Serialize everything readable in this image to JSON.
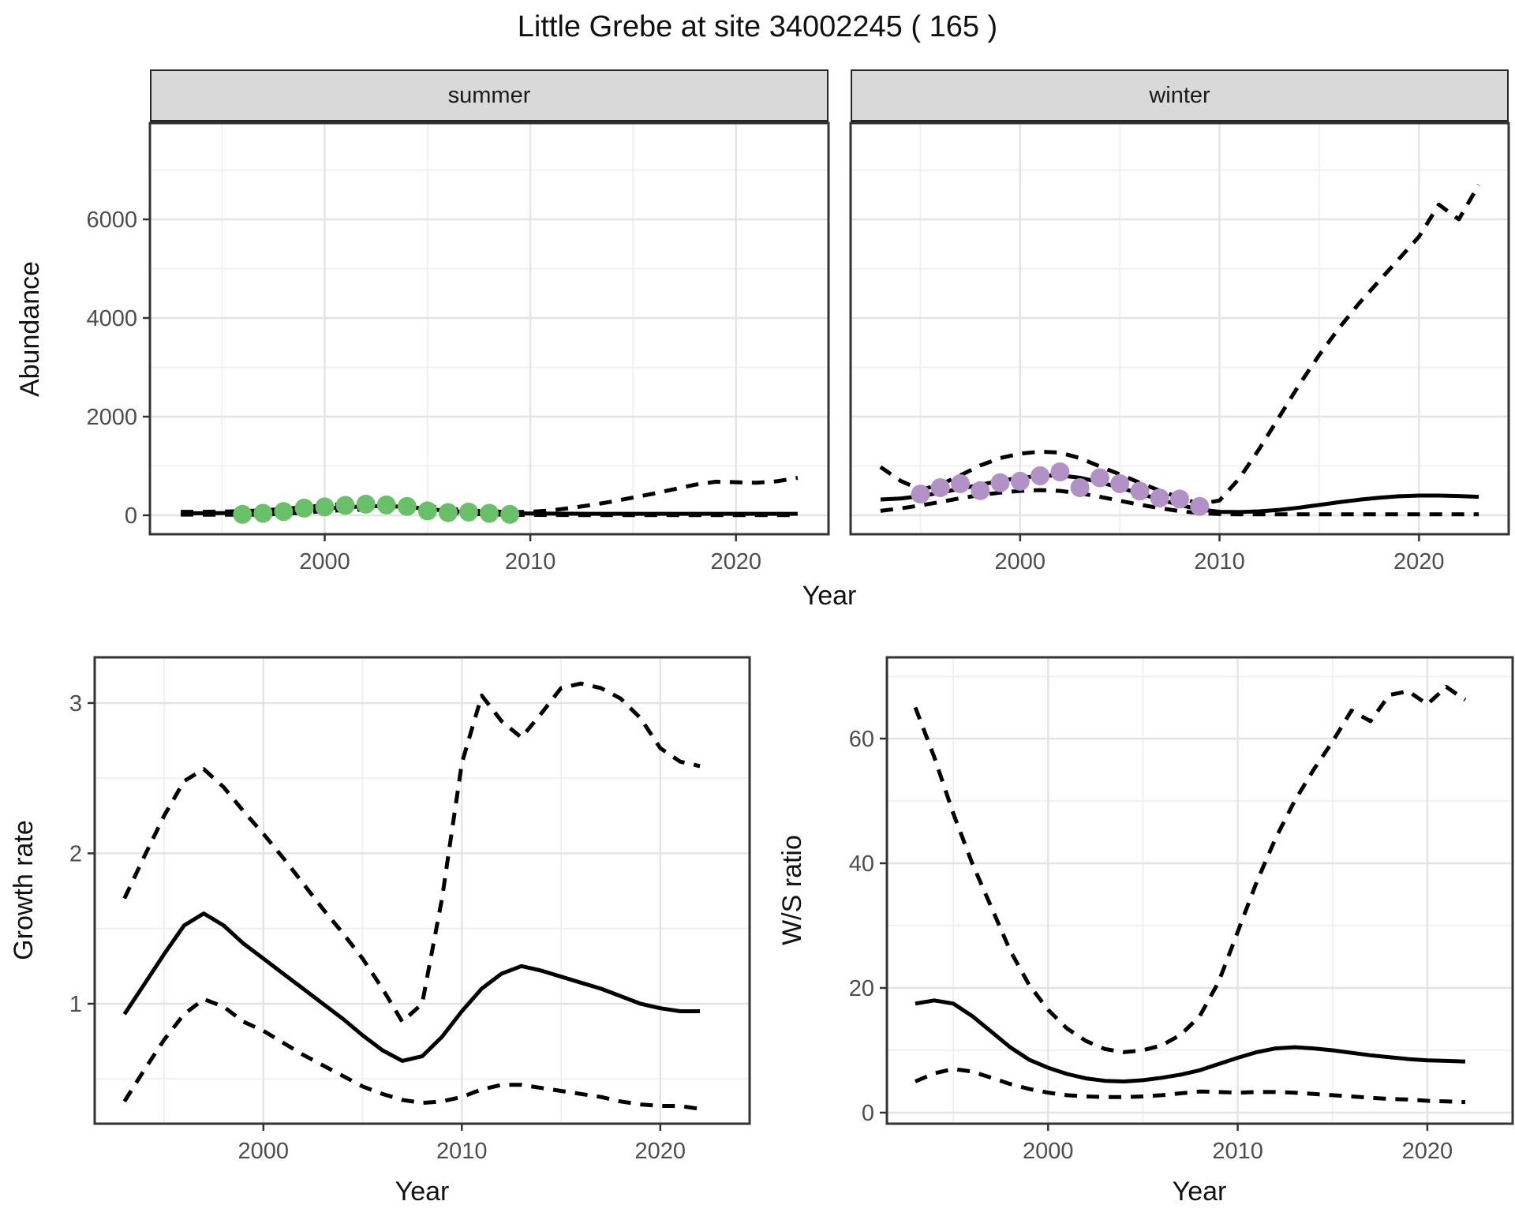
{
  "title": "Little Grebe at site 34002245 ( 165 )",
  "colors": {
    "summer_point": "#6abf69",
    "winter_point": "#b291c6",
    "line": "#000000",
    "strip_fill": "#d9d9d9",
    "grid_major": "#e4e4e4",
    "grid_minor": "#efefef",
    "axis_text": "#4d4d4d",
    "panel_border": "#333333"
  },
  "chart_data": [
    {
      "id": "abundance-summer",
      "type": "line",
      "facet": "summer",
      "xlabel": "Year",
      "ylabel": "Abundance",
      "xlim": [
        1991.5,
        2024.5
      ],
      "ylim": [
        -384,
        7952
      ],
      "xticks": [
        2000,
        2010,
        2020
      ],
      "xminor": [
        1995,
        2005,
        2015
      ],
      "yticks": [
        0,
        2000,
        4000,
        6000
      ],
      "yminor": [
        1000,
        3000,
        5000,
        7000
      ],
      "legend": "none",
      "grid": "on",
      "series": [
        {
          "name": "fit",
          "style": "solid",
          "x": [
            1993,
            1994,
            1995,
            1996,
            1997,
            1998,
            1999,
            2000,
            2001,
            2002,
            2003,
            2004,
            2005,
            2006,
            2007,
            2008,
            2009,
            2010,
            2011,
            2012,
            2013,
            2014,
            2015,
            2016,
            2017,
            2018,
            2019,
            2020,
            2021,
            2022,
            2023
          ],
          "y": [
            40,
            42,
            45,
            50,
            60,
            80,
            110,
            140,
            165,
            180,
            185,
            170,
            130,
            90,
            65,
            50,
            40,
            35,
            33,
            32,
            31,
            30,
            30,
            30,
            30,
            30,
            30,
            30,
            30,
            30,
            30
          ]
        },
        {
          "name": "ci-high",
          "style": "dashed",
          "x": [
            1993,
            1994,
            1995,
            1996,
            1997,
            1998,
            1999,
            2000,
            2001,
            2002,
            2003,
            2004,
            2005,
            2006,
            2007,
            2008,
            2009,
            2010,
            2011,
            2012,
            2013,
            2014,
            2015,
            2016,
            2017,
            2018,
            2019,
            2020,
            2021,
            2022,
            2023
          ],
          "y": [
            70,
            70,
            75,
            85,
            100,
            130,
            165,
            200,
            230,
            250,
            255,
            235,
            185,
            135,
            100,
            80,
            65,
            70,
            100,
            150,
            210,
            280,
            360,
            440,
            530,
            620,
            680,
            670,
            660,
            690,
            760
          ]
        },
        {
          "name": "ci-low",
          "style": "dashed",
          "x": [
            1993,
            1994,
            1995,
            1996,
            1997,
            1998,
            1999,
            2000,
            2001,
            2002,
            2003,
            2004,
            2005,
            2006,
            2007,
            2008,
            2009,
            2010,
            2011,
            2012,
            2013,
            2014,
            2015,
            2016,
            2017,
            2018,
            2019,
            2020,
            2021,
            2022,
            2023
          ],
          "y": [
            15,
            13,
            12,
            12,
            15,
            30,
            55,
            85,
            105,
            115,
            115,
            100,
            70,
            45,
            30,
            20,
            12,
            8,
            6,
            5,
            5,
            5,
            5,
            5,
            5,
            5,
            5,
            5,
            5,
            5,
            5
          ]
        }
      ],
      "points": {
        "name": "observed-counts",
        "color": "#6abf69",
        "x": [
          1996,
          1997,
          1998,
          1999,
          2000,
          2001,
          2002,
          2003,
          2004,
          2005,
          2006,
          2007,
          2008,
          2009
        ],
        "y": [
          20,
          40,
          75,
          145,
          170,
          200,
          225,
          210,
          180,
          90,
          55,
          65,
          40,
          20
        ]
      }
    },
    {
      "id": "abundance-winter",
      "type": "line",
      "facet": "winter",
      "xlabel": "Year",
      "ylabel": "",
      "xlim": [
        1991.5,
        2024.5
      ],
      "ylim": [
        -384,
        7952
      ],
      "xticks": [
        2000,
        2010,
        2020
      ],
      "xminor": [
        1995,
        2005,
        2015
      ],
      "yticks": [
        0,
        2000,
        4000,
        6000
      ],
      "yminor": [
        1000,
        3000,
        5000,
        7000
      ],
      "legend": "none",
      "grid": "on",
      "series": [
        {
          "name": "fit",
          "style": "solid",
          "x": [
            1993,
            1994,
            1995,
            1996,
            1997,
            1998,
            1999,
            2000,
            2001,
            2002,
            2003,
            2004,
            2005,
            2006,
            2007,
            2008,
            2009,
            2010,
            2011,
            2012,
            2013,
            2014,
            2015,
            2016,
            2017,
            2018,
            2019,
            2020,
            2021,
            2022,
            2023
          ],
          "y": [
            320,
            340,
            390,
            460,
            540,
            620,
            700,
            760,
            800,
            810,
            760,
            670,
            560,
            440,
            320,
            210,
            120,
            70,
            65,
            80,
            110,
            155,
            210,
            265,
            315,
            355,
            385,
            400,
            400,
            390,
            375
          ]
        },
        {
          "name": "ci-high",
          "style": "dashed",
          "x": [
            1993,
            1994,
            1995,
            1996,
            1997,
            1998,
            1999,
            2000,
            2001,
            2002,
            2003,
            2004,
            2005,
            2006,
            2007,
            2008,
            2009,
            2010,
            2011,
            2012,
            2013,
            2014,
            2015,
            2016,
            2017,
            2018,
            2019,
            2020,
            2021,
            2022,
            2023
          ],
          "y": [
            980,
            700,
            520,
            620,
            810,
            1010,
            1160,
            1250,
            1290,
            1270,
            1160,
            990,
            830,
            660,
            500,
            360,
            230,
            300,
            750,
            1350,
            2000,
            2650,
            3250,
            3800,
            4300,
            4750,
            5200,
            5650,
            6300,
            6000,
            6700
          ]
        },
        {
          "name": "ci-low",
          "style": "dashed",
          "x": [
            1993,
            1994,
            1995,
            1996,
            1997,
            1998,
            1999,
            2000,
            2001,
            2002,
            2003,
            2004,
            2005,
            2006,
            2007,
            2008,
            2009,
            2010,
            2011,
            2012,
            2013,
            2014,
            2015,
            2016,
            2017,
            2018,
            2019,
            2020,
            2021,
            2022,
            2023
          ],
          "y": [
            90,
            140,
            200,
            270,
            345,
            410,
            460,
            495,
            510,
            495,
            445,
            375,
            295,
            215,
            145,
            85,
            45,
            25,
            20,
            20,
            20,
            20,
            20,
            20,
            20,
            20,
            20,
            20,
            20,
            20,
            20
          ]
        }
      ],
      "points": {
        "name": "observed-counts",
        "color": "#b291c6",
        "x": [
          1995,
          1996,
          1997,
          1998,
          1999,
          2000,
          2001,
          2002,
          2003,
          2004,
          2005,
          2006,
          2007,
          2008,
          2009
        ],
        "y": [
          430,
          560,
          640,
          500,
          660,
          690,
          800,
          880,
          560,
          760,
          640,
          490,
          350,
          330,
          180
        ]
      }
    },
    {
      "id": "growth-rate",
      "type": "line",
      "facet": "",
      "xlabel": "Year",
      "ylabel": "Growth rate",
      "xlim": [
        1991.5,
        2024.5
      ],
      "ylim": [
        0.202,
        3.304
      ],
      "xticks": [
        2000,
        2010,
        2020
      ],
      "xminor": [
        1995,
        2005,
        2015
      ],
      "yticks": [
        1,
        2,
        3
      ],
      "yminor": [
        0.5,
        1.5,
        2.5
      ],
      "legend": "none",
      "grid": "on",
      "series": [
        {
          "name": "fit",
          "style": "solid",
          "x": [
            1993,
            1994,
            1995,
            1996,
            1997,
            1998,
            1999,
            2000,
            2001,
            2002,
            2003,
            2004,
            2005,
            2006,
            2007,
            2008,
            2009,
            2010,
            2011,
            2012,
            2013,
            2014,
            2015,
            2016,
            2017,
            2018,
            2019,
            2020,
            2021,
            2022
          ],
          "y": [
            0.93,
            1.13,
            1.33,
            1.52,
            1.6,
            1.52,
            1.4,
            1.3,
            1.2,
            1.1,
            1.0,
            0.9,
            0.79,
            0.69,
            0.62,
            0.65,
            0.78,
            0.95,
            1.1,
            1.2,
            1.25,
            1.22,
            1.18,
            1.14,
            1.1,
            1.05,
            1.0,
            0.97,
            0.95,
            0.95
          ]
        },
        {
          "name": "ci-high",
          "style": "dashed",
          "x": [
            1993,
            1994,
            1995,
            1996,
            1997,
            1998,
            1999,
            2000,
            2001,
            2002,
            2003,
            2004,
            2005,
            2006,
            2007,
            2008,
            2009,
            2010,
            2011,
            2012,
            2013,
            2014,
            2015,
            2016,
            2017,
            2018,
            2019,
            2020,
            2021,
            2022
          ],
          "y": [
            1.7,
            1.98,
            2.25,
            2.48,
            2.56,
            2.44,
            2.28,
            2.13,
            1.97,
            1.8,
            1.63,
            1.47,
            1.3,
            1.1,
            0.88,
            1.0,
            1.7,
            2.6,
            3.05,
            2.88,
            2.77,
            2.93,
            3.1,
            3.13,
            3.1,
            3.03,
            2.9,
            2.7,
            2.61,
            2.58
          ]
        },
        {
          "name": "ci-low",
          "style": "dashed",
          "x": [
            1993,
            1994,
            1995,
            1996,
            1997,
            1998,
            1999,
            2000,
            2001,
            2002,
            2003,
            2004,
            2005,
            2006,
            2007,
            2008,
            2009,
            2010,
            2011,
            2012,
            2013,
            2014,
            2015,
            2016,
            2017,
            2018,
            2019,
            2020,
            2021,
            2022
          ],
          "y": [
            0.35,
            0.56,
            0.76,
            0.93,
            1.03,
            0.98,
            0.88,
            0.82,
            0.74,
            0.66,
            0.59,
            0.52,
            0.45,
            0.4,
            0.36,
            0.34,
            0.35,
            0.38,
            0.43,
            0.46,
            0.46,
            0.44,
            0.42,
            0.4,
            0.38,
            0.35,
            0.33,
            0.32,
            0.32,
            0.3
          ]
        }
      ],
      "points": null
    },
    {
      "id": "ws-ratio",
      "type": "line",
      "facet": "",
      "xlabel": "Year",
      "ylabel": "W/S ratio",
      "xlim": [
        1991.5,
        2024.5
      ],
      "ylim": [
        -1.77,
        73.04
      ],
      "xticks": [
        2000,
        2010,
        2020
      ],
      "xminor": [
        1995,
        2005,
        2015
      ],
      "yticks": [
        0,
        20,
        40,
        60
      ],
      "yminor": [
        10,
        30,
        50,
        70
      ],
      "legend": "none",
      "grid": "on",
      "series": [
        {
          "name": "fit",
          "style": "solid",
          "x": [
            1993,
            1994,
            1995,
            1996,
            1997,
            1998,
            1999,
            2000,
            2001,
            2002,
            2003,
            2004,
            2005,
            2006,
            2007,
            2008,
            2009,
            2010,
            2011,
            2012,
            2013,
            2014,
            2015,
            2016,
            2017,
            2018,
            2019,
            2020,
            2021,
            2022
          ],
          "y": [
            17.5,
            18.0,
            17.5,
            15.5,
            13.0,
            10.5,
            8.5,
            7.2,
            6.2,
            5.5,
            5.1,
            5.0,
            5.2,
            5.6,
            6.1,
            6.8,
            7.8,
            8.8,
            9.7,
            10.3,
            10.5,
            10.3,
            10.0,
            9.6,
            9.2,
            8.9,
            8.6,
            8.4,
            8.3,
            8.2
          ]
        },
        {
          "name": "ci-high",
          "style": "dashed",
          "x": [
            1993,
            1994,
            1995,
            1996,
            1997,
            1998,
            1999,
            2000,
            2001,
            2002,
            2003,
            2004,
            2005,
            2006,
            2007,
            2008,
            2009,
            2010,
            2011,
            2012,
            2013,
            2014,
            2015,
            2016,
            2017,
            2018,
            2019,
            2020,
            2021,
            2022
          ],
          "y": [
            65,
            57,
            48,
            40,
            33,
            26,
            20.5,
            16.5,
            13.5,
            11.5,
            10.2,
            9.7,
            10.0,
            10.8,
            12.5,
            15.5,
            21,
            29,
            37,
            44,
            50,
            55,
            59.5,
            64.5,
            62.8,
            67.0,
            67.6,
            65.5,
            68.3,
            66.2
          ]
        },
        {
          "name": "ci-low",
          "style": "dashed",
          "x": [
            1993,
            1994,
            1995,
            1996,
            1997,
            1998,
            1999,
            2000,
            2001,
            2002,
            2003,
            2004,
            2005,
            2006,
            2007,
            2008,
            2009,
            2010,
            2011,
            2012,
            2013,
            2014,
            2015,
            2016,
            2017,
            2018,
            2019,
            2020,
            2021,
            2022
          ],
          "y": [
            5.0,
            6.3,
            7.0,
            6.6,
            5.6,
            4.6,
            3.8,
            3.2,
            2.8,
            2.6,
            2.5,
            2.5,
            2.6,
            2.8,
            3.1,
            3.4,
            3.3,
            3.2,
            3.3,
            3.3,
            3.2,
            3.0,
            2.8,
            2.6,
            2.4,
            2.2,
            2.1,
            1.9,
            1.8,
            1.7
          ]
        }
      ],
      "points": null
    }
  ]
}
